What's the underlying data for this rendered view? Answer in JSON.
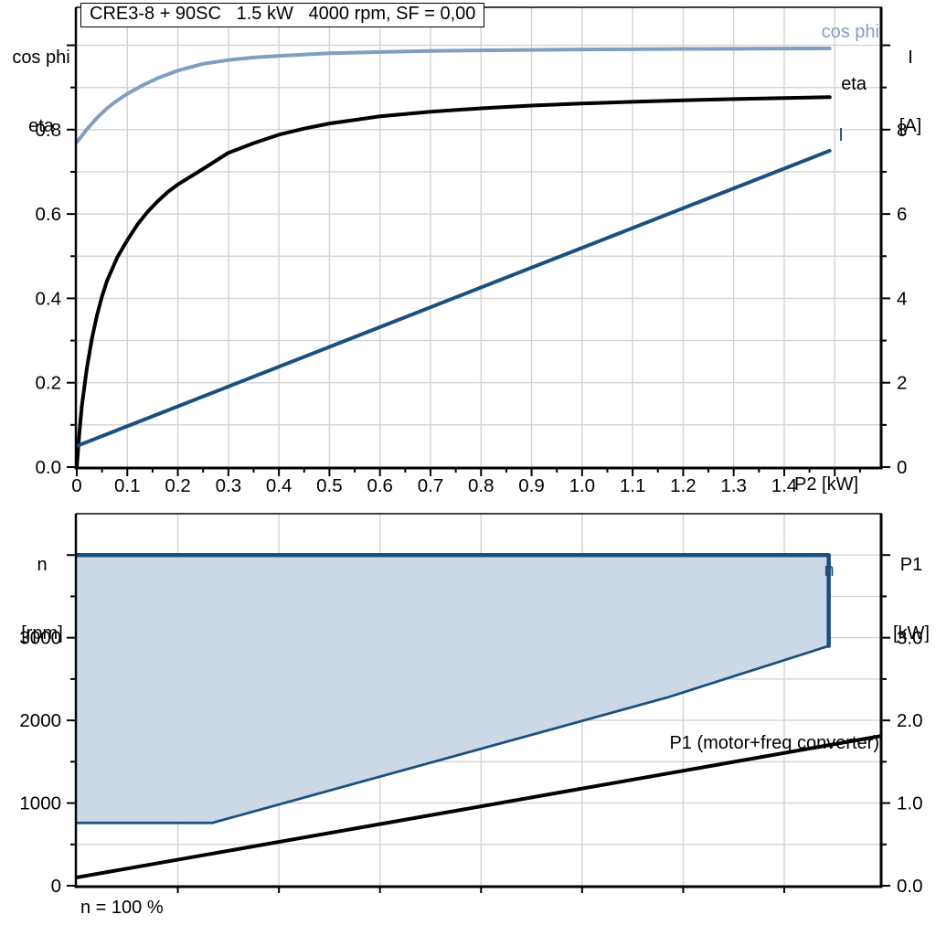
{
  "title_box": {
    "text": "CRE3-8 + 90SC   1.5 kW   4000 rpm, SF = 0,00"
  },
  "colors": {
    "dark_blue": "#1B4F7E",
    "light_blue": "#7F9FC0",
    "fill_blue": "#CDD8E7",
    "grid": "#D3D3D3",
    "black": "#000000"
  },
  "corner_labels": {
    "top_left_line1": "cos phi",
    "top_left_line2": "eta",
    "top_right_line1": "I",
    "top_right_line2": "[A]",
    "bottom_left_line1": "n",
    "bottom_left_line2": "[rpm]",
    "bottom_right_line1": "P1",
    "bottom_right_line2": "[kW]"
  },
  "labels": {
    "cos_phi_curve": "cos phi",
    "eta_curve": "eta",
    "i_curve": "I",
    "n_region": "n",
    "p1_curve": "P1 (motor+freq converter)",
    "x_axis_top": "P2 [kW]",
    "footnote": "n = 100 %"
  },
  "chart_data": [
    {
      "type": "line",
      "title": "CRE3-8 + 90SC 1.5 kW 4000 rpm, SF = 0,00",
      "xlabel": "P2 [kW]",
      "x_axis": {
        "range": [
          0,
          1.59
        ],
        "major_ticks": [
          0,
          0.1,
          0.2,
          0.3,
          0.4,
          0.5,
          0.6,
          0.7,
          0.8,
          0.9,
          1.0,
          1.1,
          1.2,
          1.3,
          1.4
        ],
        "tick_labels": [
          "0",
          "0.1",
          "0.2",
          "0.3",
          "0.4",
          "0.5",
          "0.6",
          "0.7",
          "0.8",
          "0.9",
          "1.0",
          "1.1",
          "1.2",
          "1.3",
          "1.4"
        ],
        "extra_major_ticks": [
          1.5
        ],
        "minor_ticks": [
          0.05,
          0.15,
          0.25,
          0.35,
          0.45,
          0.55,
          0.65,
          0.75,
          0.85,
          0.95,
          1.05,
          1.15,
          1.25,
          1.35,
          1.45,
          1.55
        ],
        "grid": [
          0.1,
          0.2,
          0.3,
          0.4,
          0.5,
          0.6,
          0.7,
          0.8,
          0.9,
          1.0,
          1.1,
          1.2,
          1.3,
          1.4,
          1.5
        ]
      },
      "y_left": {
        "label": "cos phi / eta",
        "range": [
          0,
          1.09
        ],
        "major_ticks": [
          0,
          0.2,
          0.4,
          0.6,
          0.8
        ],
        "tick_labels": [
          "0.0",
          "0.2",
          "0.4",
          "0.6",
          "0.8"
        ],
        "extra_major_ticks": [
          1.0
        ],
        "minor_ticks": [
          0.1,
          0.3,
          0.5,
          0.7,
          0.9
        ],
        "grid": [
          0.1,
          0.2,
          0.3,
          0.4,
          0.5,
          0.6,
          0.7,
          0.8,
          0.9,
          1.0
        ]
      },
      "y_right": {
        "label": "I [A]",
        "range": [
          0,
          10.9
        ],
        "major_ticks": [
          0,
          2,
          4,
          6,
          8
        ],
        "tick_labels": [
          "0",
          "2",
          "4",
          "6",
          "8"
        ],
        "extra_major_ticks": [
          10
        ],
        "minor_ticks": [
          1,
          3,
          5,
          7,
          9
        ]
      },
      "series": [
        {
          "name": "cos phi",
          "axis": "left",
          "color": "#7F9FC0",
          "width": 4,
          "points": [
            [
              0,
              0.77
            ],
            [
              0.02,
              0.801
            ],
            [
              0.04,
              0.828
            ],
            [
              0.06,
              0.851
            ],
            [
              0.08,
              0.869
            ],
            [
              0.1,
              0.885
            ],
            [
              0.13,
              0.905
            ],
            [
              0.16,
              0.922
            ],
            [
              0.2,
              0.94
            ],
            [
              0.25,
              0.956
            ],
            [
              0.3,
              0.965
            ],
            [
              0.35,
              0.971
            ],
            [
              0.4,
              0.975
            ],
            [
              0.5,
              0.981
            ],
            [
              0.6,
              0.984
            ],
            [
              0.7,
              0.9865
            ],
            [
              0.8,
              0.988
            ],
            [
              0.9,
              0.989
            ],
            [
              1.0,
              0.99
            ],
            [
              1.1,
              0.9907
            ],
            [
              1.2,
              0.9913
            ],
            [
              1.3,
              0.9918
            ],
            [
              1.4,
              0.9922
            ],
            [
              1.49,
              0.9925
            ]
          ]
        },
        {
          "name": "eta",
          "axis": "left",
          "color": "#000000",
          "width": 4,
          "points": [
            [
              0,
              0
            ],
            [
              0.005,
              0.08
            ],
            [
              0.01,
              0.145
            ],
            [
              0.02,
              0.235
            ],
            [
              0.03,
              0.305
            ],
            [
              0.04,
              0.36
            ],
            [
              0.05,
              0.405
            ],
            [
              0.06,
              0.442
            ],
            [
              0.08,
              0.497
            ],
            [
              0.1,
              0.538
            ],
            [
              0.12,
              0.575
            ],
            [
              0.14,
              0.605
            ],
            [
              0.16,
              0.63
            ],
            [
              0.18,
              0.652
            ],
            [
              0.2,
              0.67
            ],
            [
              0.25,
              0.707
            ],
            [
              0.3,
              0.745
            ],
            [
              0.35,
              0.768
            ],
            [
              0.4,
              0.788
            ],
            [
              0.45,
              0.8025
            ],
            [
              0.5,
              0.8145
            ],
            [
              0.6,
              0.8315
            ],
            [
              0.7,
              0.8425
            ],
            [
              0.8,
              0.8505
            ],
            [
              0.9,
              0.857
            ],
            [
              1.0,
              0.862
            ],
            [
              1.1,
              0.866
            ],
            [
              1.2,
              0.8695
            ],
            [
              1.3,
              0.8725
            ],
            [
              1.4,
              0.875
            ],
            [
              1.49,
              0.877
            ]
          ]
        },
        {
          "name": "I",
          "axis": "right",
          "color": "#1B4F7E",
          "width": 4,
          "points": [
            [
              0,
              0.5
            ],
            [
              1.49,
              7.5
            ]
          ]
        }
      ]
    },
    {
      "type": "area",
      "xlabel": "",
      "x_axis": {
        "range": [
          0,
          1.59
        ],
        "major_ticks": [
          0.2,
          0.4,
          0.6,
          0.8,
          1.0,
          1.2,
          1.4
        ],
        "tick_labels": [],
        "extra_major_ticks": [],
        "minor_ticks": [],
        "grid": [
          0.2,
          0.4,
          0.6,
          0.8,
          1.0,
          1.2,
          1.4
        ]
      },
      "y_left": {
        "label": "n [rpm]",
        "range": [
          0,
          4500
        ],
        "major_ticks": [
          0,
          1000,
          2000,
          3000
        ],
        "tick_labels": [
          "0",
          "1000",
          "2000",
          "3000"
        ],
        "extra_major_ticks": [
          4000
        ],
        "minor_ticks": [
          500,
          1500,
          2500,
          3500
        ],
        "grid": [
          500,
          1000,
          1500,
          2000,
          2500,
          3000,
          3500,
          4000
        ]
      },
      "y_right": {
        "label": "P1 [kW]",
        "range": [
          0,
          4.5
        ],
        "major_ticks": [
          0,
          1,
          2,
          3
        ],
        "tick_labels": [
          "0.0",
          "1.0",
          "2.0",
          "3.0"
        ],
        "extra_major_ticks": [
          4
        ],
        "minor_ticks": [
          0.5,
          1.5,
          2.5,
          3.5
        ]
      },
      "series": [
        {
          "name": "n operating envelope",
          "type": "polygon",
          "axis": "left",
          "fill": "#CDD8E7",
          "points": [
            [
              0,
              760
            ],
            [
              0.268,
              760
            ],
            [
              1.17,
              2280
            ],
            [
              1.488,
              2900
            ],
            [
              1.488,
              4000
            ],
            [
              0,
              4000
            ]
          ]
        },
        {
          "name": "n envelope top edge",
          "type": "line",
          "axis": "left",
          "color": "#1B4F7E",
          "width": 4.5,
          "points": [
            [
              0,
              4000
            ],
            [
              1.488,
              4000
            ],
            [
              1.488,
              2900
            ]
          ]
        },
        {
          "name": "n envelope lower edge",
          "type": "line",
          "axis": "left",
          "color": "#1B4F7E",
          "width": 2.75,
          "points": [
            [
              1.488,
              2900
            ],
            [
              1.17,
              2280
            ],
            [
              0.268,
              760
            ],
            [
              0,
              760
            ]
          ]
        },
        {
          "name": "P1 (motor+freq converter)",
          "type": "line",
          "axis": "right",
          "color": "#000000",
          "width": 4,
          "points": [
            [
              0,
              0.1
            ],
            [
              1.59,
              1.81
            ]
          ]
        }
      ],
      "footnote": "n = 100 %"
    }
  ]
}
